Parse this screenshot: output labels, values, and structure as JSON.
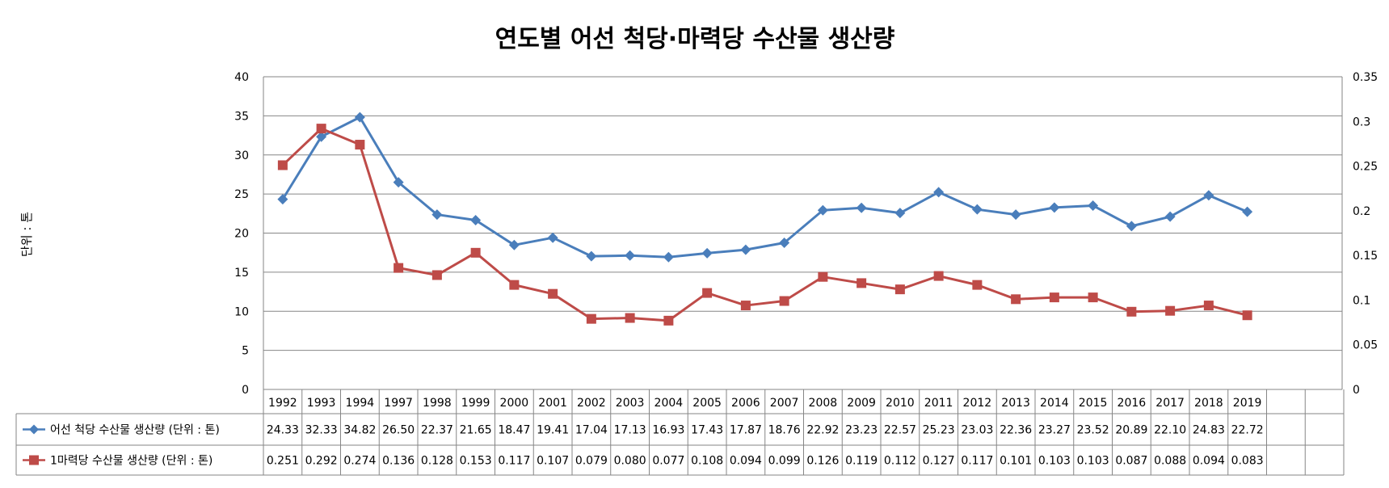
{
  "chart_data": {
    "type": "line",
    "title": "연도별 어선 척당·마력당 수산물 생산량",
    "ylabel": "단위 : 톤",
    "categories": [
      "1992",
      "1993",
      "1994",
      "1997",
      "1998",
      "1999",
      "2000",
      "2001",
      "2002",
      "2003",
      "2004",
      "2005",
      "2006",
      "2007",
      "2008",
      "2009",
      "2010",
      "2011",
      "2012",
      "2013",
      "2014",
      "2015",
      "2016",
      "2017",
      "2018",
      "2019"
    ],
    "y_left": {
      "min": 0,
      "max": 40,
      "step": 5,
      "ticks": [
        "0",
        "5",
        "10",
        "15",
        "20",
        "25",
        "30",
        "35",
        "40"
      ]
    },
    "y_right": {
      "min": 0,
      "max": 0.35,
      "step": 0.05,
      "ticks": [
        "0",
        "0.05",
        "0.1",
        "0.15",
        "0.2",
        "0.25",
        "0.3",
        "0.35"
      ]
    },
    "series": [
      {
        "name": "어선 척당 수산물 생산량 (단위 : 톤)",
        "axis": "left",
        "color": "#4a7ebb",
        "marker": "diamond",
        "values": [
          24.33,
          32.33,
          34.82,
          26.5,
          22.37,
          21.65,
          18.47,
          19.41,
          17.04,
          17.13,
          16.93,
          17.43,
          17.87,
          18.76,
          22.92,
          23.23,
          22.57,
          25.23,
          23.03,
          22.36,
          23.27,
          23.52,
          20.89,
          22.1,
          24.83,
          22.72
        ],
        "labels": [
          "24.33",
          "32.33",
          "34.82",
          "26.50",
          "22.37",
          "21.65",
          "18.47",
          "19.41",
          "17.04",
          "17.13",
          "16.93",
          "17.43",
          "17.87",
          "18.76",
          "22.92",
          "23.23",
          "22.57",
          "25.23",
          "23.03",
          "22.36",
          "23.27",
          "23.52",
          "20.89",
          "22.10",
          "24.83",
          "22.72"
        ]
      },
      {
        "name": "1마력당 수산물 생산량 (단위 : 톤)",
        "axis": "right",
        "color": "#be4b48",
        "marker": "square",
        "values": [
          0.251,
          0.292,
          0.274,
          0.136,
          0.128,
          0.153,
          0.117,
          0.107,
          0.079,
          0.08,
          0.077,
          0.108,
          0.094,
          0.099,
          0.126,
          0.119,
          0.112,
          0.127,
          0.117,
          0.101,
          0.103,
          0.103,
          0.087,
          0.088,
          0.094,
          0.083
        ],
        "labels": [
          "0.251",
          "0.292",
          "0.274",
          "0.136",
          "0.128",
          "0.153",
          "0.117",
          "0.107",
          "0.079",
          "0.080",
          "0.077",
          "0.108",
          "0.094",
          "0.099",
          "0.126",
          "0.119",
          "0.112",
          "0.127",
          "0.117",
          "0.101",
          "0.103",
          "0.103",
          "0.087",
          "0.088",
          "0.094",
          "0.083"
        ]
      }
    ],
    "grid": true,
    "legend": "data-table-below"
  }
}
